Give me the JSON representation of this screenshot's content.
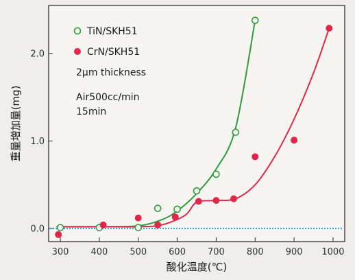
{
  "chart_data": {
    "type": "scatter",
    "xlabel": "酸化温度(℃)",
    "ylabel": "重量増加量(mg)",
    "xlim": [
      270,
      1030
    ],
    "ylim": [
      -0.15,
      2.55
    ],
    "xticks": [
      300,
      400,
      500,
      600,
      700,
      800,
      900,
      1000
    ],
    "xtick_labels": [
      "300",
      "400",
      "500",
      "600",
      "700",
      "800",
      "900",
      "1000"
    ],
    "yticks": [
      0.0,
      1.0,
      2.0
    ],
    "ytick_labels": [
      "0.0",
      "1.0",
      "2.0"
    ],
    "grid": false,
    "legend_position": "top-left",
    "annotations": [
      "2μm thickness",
      "Air500cc/min",
      "15min"
    ],
    "series": [
      {
        "name": "TiN/SKH51",
        "marker": "open-circle",
        "color": "#2e9a3c",
        "x": [
          300,
          400,
          500,
          550,
          600,
          650,
          700,
          750,
          800
        ],
        "y": [
          0.01,
          0.01,
          0.01,
          0.23,
          0.22,
          0.43,
          0.62,
          1.1,
          2.38
        ],
        "fit_x": [
          290,
          400,
          500,
          560,
          600,
          650,
          700,
          750,
          800
        ],
        "fit_y": [
          0.02,
          0.02,
          0.03,
          0.1,
          0.2,
          0.4,
          0.68,
          1.15,
          2.38
        ]
      },
      {
        "name": "CrN/SKH51",
        "marker": "filled-circle",
        "color": "#e0274a",
        "x": [
          295,
          410,
          500,
          550,
          595,
          655,
          700,
          745,
          800,
          900,
          990
        ],
        "y": [
          -0.07,
          0.04,
          0.12,
          0.04,
          0.13,
          0.31,
          0.32,
          0.34,
          0.82,
          1.01,
          2.29
        ],
        "fit_x": [
          290,
          400,
          500,
          560,
          620,
          650,
          700,
          750,
          800,
          850,
          900,
          950,
          990
        ],
        "fit_y": [
          0.02,
          0.02,
          0.02,
          0.04,
          0.15,
          0.3,
          0.32,
          0.34,
          0.5,
          0.82,
          1.25,
          1.78,
          2.29
        ]
      }
    ],
    "reference_line": {
      "y": 0.0,
      "color": "#3aa6e0",
      "style": "dotted"
    }
  }
}
